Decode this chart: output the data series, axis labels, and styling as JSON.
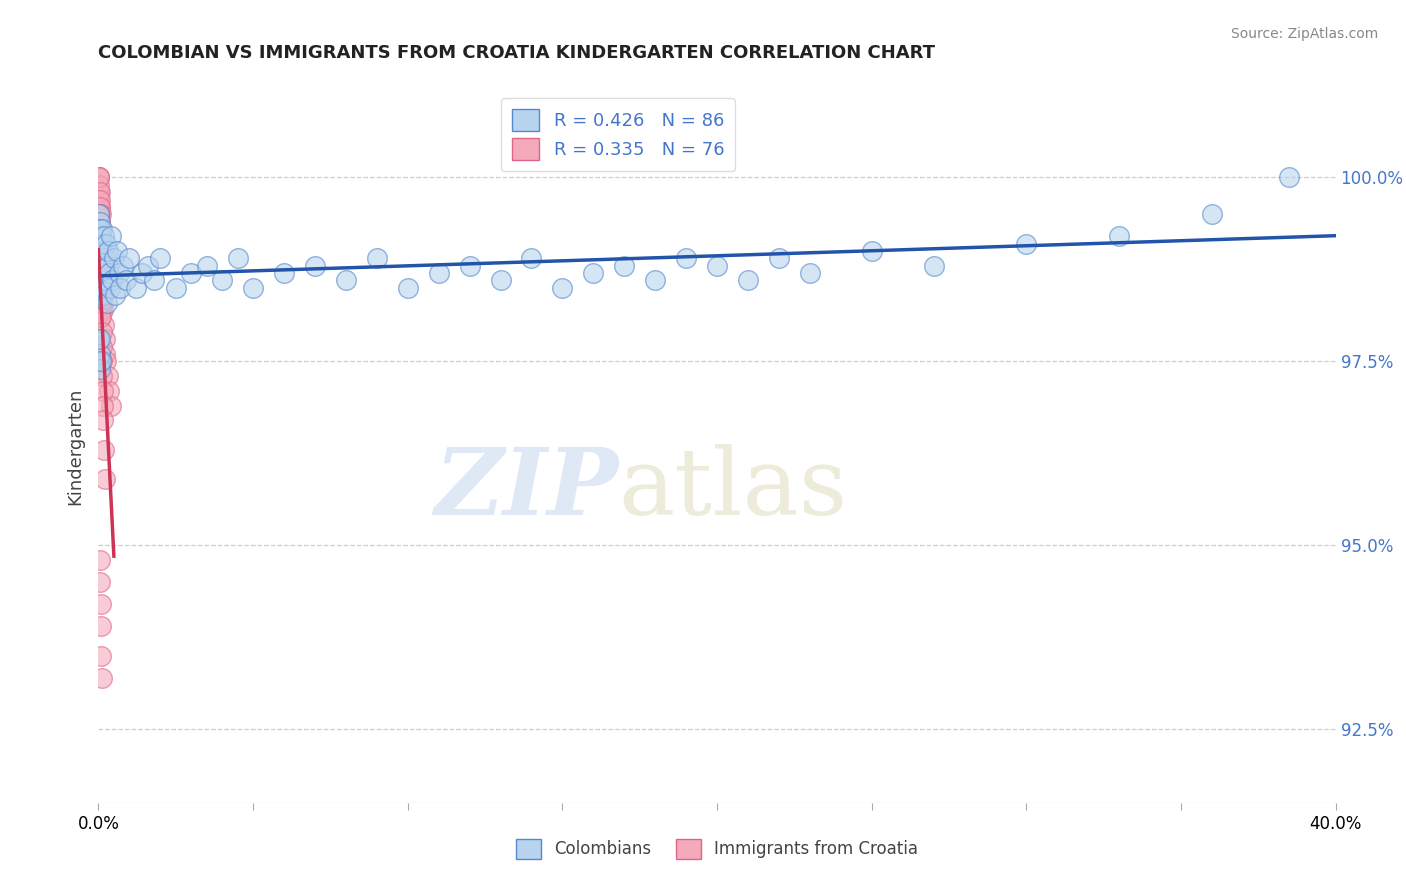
{
  "title": "COLOMBIAN VS IMMIGRANTS FROM CROATIA KINDERGARTEN CORRELATION CHART",
  "source": "Source: ZipAtlas.com",
  "ylabel": "Kindergarten",
  "right_yticks": [
    92.5,
    95.0,
    97.5,
    100.0
  ],
  "right_ytick_labels": [
    "92.5%",
    "95.0%",
    "97.5%",
    "100.0%"
  ],
  "xlim": [
    0.0,
    40.0
  ],
  "ylim": [
    91.5,
    101.2
  ],
  "colombians_R": 0.426,
  "colombians_N": 86,
  "croatia_R": 0.335,
  "croatia_N": 76,
  "legend_label_1": "Colombians",
  "legend_label_2": "Immigrants from Croatia",
  "color_blue_fill": "#b8d4ee",
  "color_pink_fill": "#f4aabb",
  "color_blue_edge": "#5588cc",
  "color_pink_edge": "#dd6688",
  "color_blue_line": "#2255aa",
  "color_pink_line": "#cc3355",
  "color_axis_text": "#4477cc",
  "watermark_color": "#ccddf0",
  "colombians_x": [
    0.02,
    0.02,
    0.03,
    0.03,
    0.03,
    0.04,
    0.04,
    0.04,
    0.05,
    0.05,
    0.06,
    0.06,
    0.07,
    0.07,
    0.08,
    0.08,
    0.09,
    0.1,
    0.1,
    0.11,
    0.12,
    0.13,
    0.14,
    0.15,
    0.16,
    0.17,
    0.18,
    0.2,
    0.22,
    0.25,
    0.28,
    0.3,
    0.32,
    0.35,
    0.38,
    0.4,
    0.45,
    0.5,
    0.55,
    0.6,
    0.65,
    0.7,
    0.8,
    0.9,
    1.0,
    1.2,
    1.4,
    1.6,
    1.8,
    2.0,
    2.5,
    3.0,
    3.5,
    4.0,
    4.5,
    5.0,
    6.0,
    7.0,
    8.0,
    9.0,
    10.0,
    11.0,
    12.0,
    13.0,
    14.0,
    15.0,
    16.0,
    17.0,
    18.0,
    19.0,
    20.0,
    21.0,
    22.0,
    23.0,
    25.0,
    27.0,
    30.0,
    33.0,
    36.0,
    38.5,
    0.02,
    0.03,
    0.04,
    0.05,
    0.06,
    0.07
  ],
  "colombians_y": [
    98.5,
    99.0,
    98.8,
    99.2,
    99.5,
    98.6,
    99.1,
    99.4,
    98.7,
    99.3,
    98.4,
    99.0,
    98.9,
    99.2,
    98.5,
    99.1,
    98.8,
    98.6,
    99.3,
    98.9,
    98.7,
    99.1,
    98.4,
    99.0,
    98.8,
    99.2,
    98.5,
    98.9,
    98.6,
    99.1,
    98.3,
    98.8,
    99.0,
    98.7,
    98.5,
    99.2,
    98.6,
    98.9,
    98.4,
    99.0,
    98.7,
    98.5,
    98.8,
    98.6,
    98.9,
    98.5,
    98.7,
    98.8,
    98.6,
    98.9,
    98.5,
    98.7,
    98.8,
    98.6,
    98.9,
    98.5,
    98.7,
    98.8,
    98.6,
    98.9,
    98.5,
    98.7,
    98.8,
    98.6,
    98.9,
    98.5,
    98.7,
    98.8,
    98.6,
    98.9,
    98.8,
    98.6,
    98.9,
    98.7,
    99.0,
    98.8,
    99.1,
    99.2,
    99.5,
    100.0,
    97.8,
    97.5,
    97.6,
    97.4,
    97.8,
    97.5
  ],
  "croatia_x": [
    0.01,
    0.01,
    0.02,
    0.02,
    0.02,
    0.03,
    0.03,
    0.03,
    0.03,
    0.04,
    0.04,
    0.04,
    0.05,
    0.05,
    0.05,
    0.06,
    0.06,
    0.06,
    0.07,
    0.07,
    0.07,
    0.08,
    0.08,
    0.09,
    0.09,
    0.1,
    0.1,
    0.11,
    0.12,
    0.13,
    0.14,
    0.15,
    0.16,
    0.18,
    0.2,
    0.22,
    0.25,
    0.3,
    0.35,
    0.4,
    0.02,
    0.03,
    0.04,
    0.05,
    0.03,
    0.04,
    0.05,
    0.06,
    0.07,
    0.08,
    0.02,
    0.03,
    0.04,
    0.02,
    0.03,
    0.04,
    0.05,
    0.06,
    0.07,
    0.08,
    0.09,
    0.1,
    0.11,
    0.12,
    0.13,
    0.14,
    0.15,
    0.16,
    0.18,
    0.2,
    0.05,
    0.06,
    0.07,
    0.08,
    0.09,
    0.1
  ],
  "croatia_y": [
    99.8,
    100.0,
    99.6,
    99.8,
    100.0,
    99.5,
    99.7,
    99.9,
    100.0,
    99.4,
    99.6,
    99.8,
    99.3,
    99.5,
    99.7,
    99.2,
    99.4,
    99.6,
    99.1,
    99.3,
    99.5,
    99.0,
    99.2,
    98.9,
    99.1,
    98.8,
    99.0,
    98.7,
    98.6,
    98.5,
    98.4,
    98.3,
    98.2,
    98.0,
    97.8,
    97.6,
    97.5,
    97.3,
    97.1,
    96.9,
    99.0,
    98.8,
    98.6,
    98.4,
    99.2,
    99.0,
    98.8,
    98.6,
    98.4,
    98.2,
    98.5,
    98.3,
    98.1,
    99.5,
    99.3,
    99.1,
    98.9,
    98.7,
    98.5,
    98.3,
    98.1,
    97.9,
    97.7,
    97.5,
    97.3,
    97.1,
    96.9,
    96.7,
    96.3,
    95.9,
    94.8,
    94.5,
    94.2,
    93.9,
    93.5,
    93.2
  ]
}
